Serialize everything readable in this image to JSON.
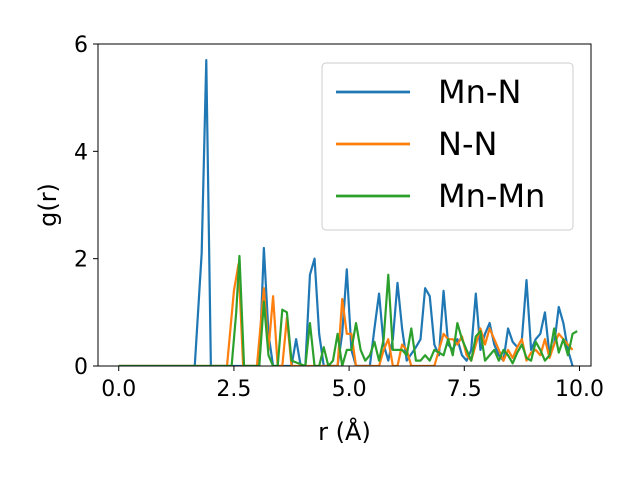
{
  "chart_data": {
    "type": "line",
    "title": "",
    "xlabel": "r (Å)",
    "ylabel": "g(r)",
    "xlim": [
      -0.45,
      10.25
    ],
    "ylim": [
      0,
      6
    ],
    "xticks": [
      0.0,
      2.5,
      5.0,
      7.5,
      10.0
    ],
    "xtick_labels": [
      "0.0",
      "2.5",
      "5.0",
      "7.5",
      "10.0"
    ],
    "yticks": [
      0,
      2,
      4,
      6
    ],
    "ytick_labels": [
      "0",
      "2",
      "4",
      "6"
    ],
    "grid": false,
    "legend_position": "top-right",
    "series": [
      {
        "name": "Mn-N",
        "color": "#1f77b4",
        "points": [
          [
            0,
            0
          ],
          [
            1.65,
            0
          ],
          [
            1.8,
            2.1
          ],
          [
            1.9,
            5.7
          ],
          [
            2.0,
            0
          ],
          [
            3.05,
            0
          ],
          [
            3.15,
            2.2
          ],
          [
            3.25,
            0.6
          ],
          [
            3.35,
            0
          ],
          [
            3.75,
            0
          ],
          [
            3.85,
            0.5
          ],
          [
            3.95,
            0
          ],
          [
            4.05,
            0
          ],
          [
            4.15,
            1.7
          ],
          [
            4.25,
            2.0
          ],
          [
            4.35,
            0.6
          ],
          [
            4.45,
            0
          ],
          [
            4.75,
            0
          ],
          [
            4.85,
            0.6
          ],
          [
            4.95,
            1.8
          ],
          [
            5.05,
            0.3
          ],
          [
            5.15,
            0
          ],
          [
            5.45,
            0
          ],
          [
            5.55,
            0.7
          ],
          [
            5.65,
            1.35
          ],
          [
            5.75,
            0.4
          ],
          [
            5.85,
            0.1
          ],
          [
            5.95,
            0.5
          ],
          [
            6.05,
            1.55
          ],
          [
            6.15,
            0.7
          ],
          [
            6.25,
            0.1
          ],
          [
            6.45,
            0.35
          ],
          [
            6.55,
            0.5
          ],
          [
            6.65,
            1.45
          ],
          [
            6.75,
            1.3
          ],
          [
            6.85,
            0.4
          ],
          [
            6.95,
            0.2
          ],
          [
            7.05,
            1.4
          ],
          [
            7.15,
            0.4
          ],
          [
            7.25,
            0.3
          ],
          [
            7.35,
            0.5
          ],
          [
            7.45,
            0.2
          ],
          [
            7.55,
            0.1
          ],
          [
            7.65,
            0.3
          ],
          [
            7.75,
            1.35
          ],
          [
            7.85,
            0.3
          ],
          [
            7.95,
            0.6
          ],
          [
            8.05,
            0.8
          ],
          [
            8.15,
            0.4
          ],
          [
            8.25,
            0.2
          ],
          [
            8.35,
            0.1
          ],
          [
            8.45,
            0.7
          ],
          [
            8.55,
            0.45
          ],
          [
            8.65,
            0.35
          ],
          [
            8.75,
            0.5
          ],
          [
            8.85,
            1.6
          ],
          [
            8.95,
            0.3
          ],
          [
            9.05,
            0.5
          ],
          [
            9.15,
            0.6
          ],
          [
            9.25,
            1.0
          ],
          [
            9.35,
            0.2
          ],
          [
            9.45,
            0.4
          ],
          [
            9.55,
            1.1
          ],
          [
            9.65,
            0.8
          ],
          [
            9.75,
            0.3
          ],
          [
            9.85,
            0
          ]
        ]
      },
      {
        "name": "N-N",
        "color": "#ff7f0e",
        "points": [
          [
            0,
            0
          ],
          [
            2.35,
            0
          ],
          [
            2.5,
            1.4
          ],
          [
            2.6,
            1.9
          ],
          [
            2.7,
            0
          ],
          [
            3.0,
            0
          ],
          [
            3.15,
            1.45
          ],
          [
            3.25,
            0.3
          ],
          [
            3.35,
            1.3
          ],
          [
            3.45,
            0
          ],
          [
            3.55,
            0
          ],
          [
            3.65,
            0.9
          ],
          [
            3.75,
            0
          ],
          [
            4.75,
            0
          ],
          [
            4.85,
            1.25
          ],
          [
            4.95,
            0.6
          ],
          [
            5.05,
            0.6
          ],
          [
            5.15,
            0
          ],
          [
            5.65,
            0
          ],
          [
            5.75,
            0.3
          ],
          [
            5.85,
            0.5
          ],
          [
            5.95,
            0
          ],
          [
            6.05,
            0
          ],
          [
            6.15,
            0.4
          ],
          [
            6.25,
            0.3
          ],
          [
            6.35,
            0
          ],
          [
            6.85,
            0
          ],
          [
            6.95,
            0.3
          ],
          [
            7.05,
            0.6
          ],
          [
            7.15,
            0.5
          ],
          [
            7.25,
            0.5
          ],
          [
            7.35,
            0.4
          ],
          [
            7.45,
            0.55
          ],
          [
            7.55,
            0.2
          ],
          [
            7.65,
            0.1
          ],
          [
            7.75,
            0.4
          ],
          [
            7.85,
            0.7
          ],
          [
            7.95,
            0.4
          ],
          [
            8.05,
            0.7
          ],
          [
            8.15,
            0.5
          ],
          [
            8.25,
            0.3
          ],
          [
            8.35,
            0.1
          ],
          [
            8.45,
            0.3
          ],
          [
            8.55,
            0.15
          ],
          [
            8.65,
            0.35
          ],
          [
            8.75,
            0.5
          ],
          [
            8.85,
            0.1
          ],
          [
            8.95,
            0.25
          ],
          [
            9.05,
            0.3
          ],
          [
            9.15,
            0.2
          ],
          [
            9.25,
            0.5
          ],
          [
            9.35,
            0.15
          ],
          [
            9.45,
            0.4
          ],
          [
            9.55,
            0.6
          ],
          [
            9.65,
            0.5
          ],
          [
            9.75,
            0.4
          ],
          [
            9.85,
            0.3
          ]
        ]
      },
      {
        "name": "Mn-Mn",
        "color": "#2ca02c",
        "points": [
          [
            0,
            0
          ],
          [
            2.45,
            0
          ],
          [
            2.55,
            1.0
          ],
          [
            2.62,
            2.05
          ],
          [
            2.72,
            0
          ],
          [
            3.05,
            0
          ],
          [
            3.15,
            1.2
          ],
          [
            3.25,
            0.2
          ],
          [
            3.35,
            0
          ],
          [
            3.45,
            0
          ],
          [
            3.55,
            1.05
          ],
          [
            3.65,
            1.0
          ],
          [
            3.75,
            0.1
          ],
          [
            4.05,
            0
          ],
          [
            4.15,
            0.8
          ],
          [
            4.25,
            0
          ],
          [
            4.35,
            0
          ],
          [
            4.45,
            0.35
          ],
          [
            4.55,
            0
          ],
          [
            4.65,
            0.1
          ],
          [
            4.75,
            0.6
          ],
          [
            4.85,
            0
          ],
          [
            4.95,
            0.3
          ],
          [
            5.05,
            0.3
          ],
          [
            5.15,
            0.8
          ],
          [
            5.25,
            0.3
          ],
          [
            5.35,
            0.1
          ],
          [
            5.45,
            0.2
          ],
          [
            5.55,
            0.45
          ],
          [
            5.65,
            0.1
          ],
          [
            5.75,
            0.5
          ],
          [
            5.85,
            1.7
          ],
          [
            5.95,
            0.3
          ],
          [
            6.05,
            0.3
          ],
          [
            6.15,
            0.3
          ],
          [
            6.25,
            0.2
          ],
          [
            6.35,
            0.7
          ],
          [
            6.45,
            0.1
          ],
          [
            6.55,
            0.1
          ],
          [
            6.65,
            0.2
          ],
          [
            6.75,
            0.1
          ],
          [
            6.85,
            0.3
          ],
          [
            6.95,
            0.25
          ],
          [
            7.05,
            0.2
          ],
          [
            7.15,
            0.5
          ],
          [
            7.25,
            0.2
          ],
          [
            7.35,
            0.8
          ],
          [
            7.45,
            0.5
          ],
          [
            7.55,
            0.3
          ],
          [
            7.65,
            0.1
          ],
          [
            7.75,
            0.55
          ],
          [
            7.85,
            0.65
          ],
          [
            7.95,
            0.1
          ],
          [
            8.05,
            0.2
          ],
          [
            8.15,
            0.3
          ],
          [
            8.25,
            0.1
          ],
          [
            8.35,
            0.3
          ],
          [
            8.45,
            0.2
          ],
          [
            8.55,
            0.05
          ],
          [
            8.65,
            0.25
          ],
          [
            8.75,
            0.4
          ],
          [
            8.85,
            0.15
          ],
          [
            8.95,
            0.1
          ],
          [
            9.05,
            0.45
          ],
          [
            9.15,
            0.3
          ],
          [
            9.25,
            0.1
          ],
          [
            9.35,
            0.2
          ],
          [
            9.45,
            0.7
          ],
          [
            9.55,
            0.25
          ],
          [
            9.65,
            0.5
          ],
          [
            9.75,
            0.2
          ],
          [
            9.85,
            0.6
          ],
          [
            9.95,
            0.65
          ]
        ]
      }
    ]
  }
}
